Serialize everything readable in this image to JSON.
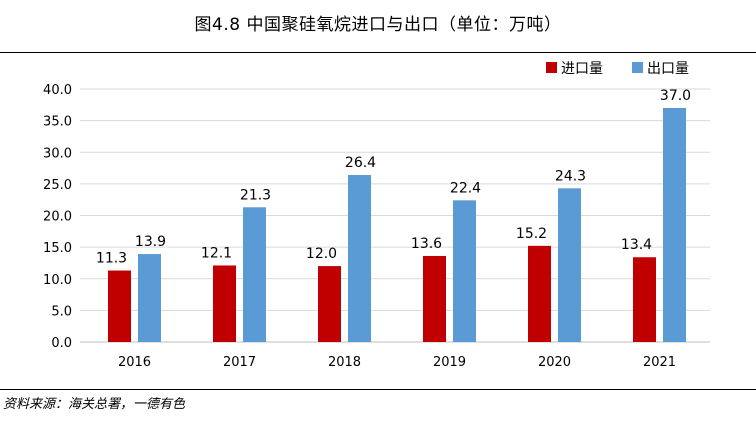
{
  "title": "图4.8 中国聚硅氧烷进口与出口（单位：万吨）",
  "source": "资料来源：海关总署，一德有色",
  "chart_data": {
    "type": "bar",
    "categories": [
      "2016",
      "2017",
      "2018",
      "2019",
      "2020",
      "2021"
    ],
    "series": [
      {
        "name": "进口量",
        "color": "#c00000",
        "values": [
          11.3,
          12.1,
          12.0,
          13.6,
          15.2,
          13.4
        ]
      },
      {
        "name": "出口量",
        "color": "#5b9bd5",
        "values": [
          13.9,
          21.3,
          26.4,
          22.4,
          24.3,
          37.0
        ]
      }
    ],
    "ylim": [
      0,
      40
    ],
    "yticks": [
      "0.0",
      "5.0",
      "10.0",
      "15.0",
      "20.0",
      "25.0",
      "30.0",
      "35.0",
      "40.0"
    ],
    "grid": true,
    "legend": "top-right"
  }
}
